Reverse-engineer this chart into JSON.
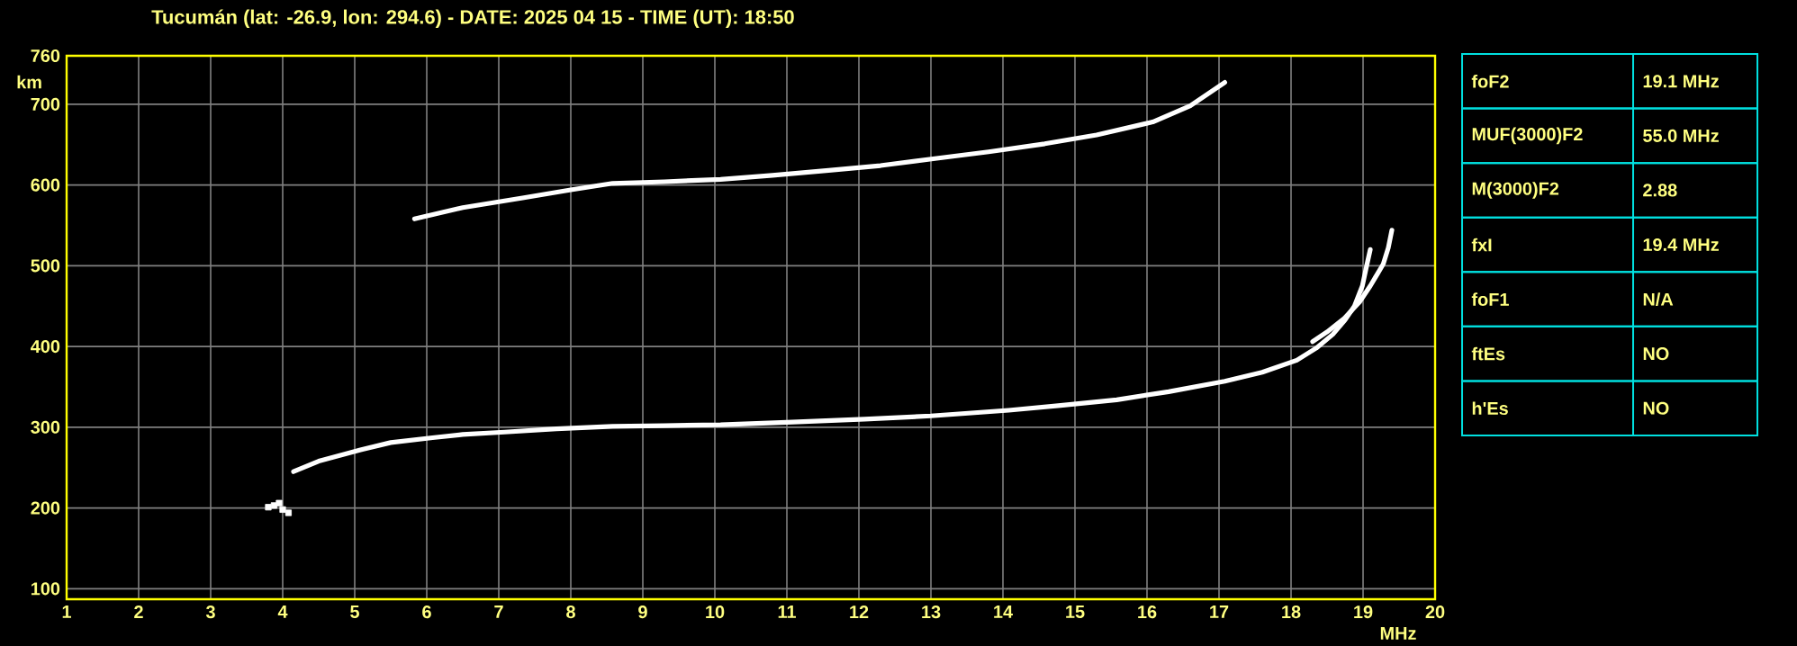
{
  "chart_data": [
    {
      "type": "line",
      "title": "Tucumán (lat: -26.9, lon: 294.6) - DATE: 2025 04 15 - TIME (UT): 18:50",
      "xlabel": "MHz",
      "ylabel": "km",
      "xlim": [
        1,
        20
      ],
      "ylim": [
        87,
        760
      ],
      "xticks": [
        1,
        2,
        3,
        4,
        5,
        6,
        7,
        8,
        9,
        10,
        11,
        12,
        13,
        14,
        15,
        16,
        17,
        18,
        19,
        20
      ],
      "yticks": [
        100,
        200,
        300,
        400,
        500,
        600,
        700,
        760
      ],
      "grid": true,
      "series": [
        {
          "color": "#ffffff",
          "x": [
            4.15,
            4.5,
            5.08,
            5.5,
            6.08,
            6.5,
            7.08,
            7.8,
            8.58,
            9.3,
            10.08,
            11.0,
            12.08,
            13.0,
            14.08,
            14.8,
            15.58,
            16.3,
            17.08,
            17.6,
            18.08,
            18.35,
            18.58,
            18.75,
            18.88,
            18.99,
            19.05,
            19.1
          ],
          "values": [
            245,
            258,
            272,
            281,
            287,
            291,
            294,
            298,
            301,
            302,
            303,
            306,
            310,
            314,
            321,
            327,
            334,
            344,
            357,
            368,
            383,
            398,
            415,
            433,
            450,
            475,
            500,
            520
          ]
        },
        {
          "color": "#ffffff",
          "x": [
            18.3,
            18.5,
            18.74,
            18.95,
            19.1,
            19.2,
            19.28,
            19.35,
            19.4
          ],
          "values": [
            406,
            418,
            435,
            455,
            475,
            490,
            502,
            522,
            544
          ]
        },
        {
          "color": "#ffffff",
          "x": [
            5.83,
            6.5,
            7.33,
            8.0,
            8.58,
            9.3,
            10.08,
            10.8,
            11.58,
            12.3,
            13.08,
            13.8,
            14.58,
            15.3,
            16.08,
            16.6,
            17.08
          ],
          "values": [
            558,
            572,
            584,
            594,
            602,
            604,
            607,
            612,
            618,
            624,
            633,
            641,
            651,
            662,
            678,
            698,
            727
          ]
        },
        {
          "type": "scatter",
          "marker": "square",
          "color": "#ffffff",
          "x": [
            3.8,
            3.88,
            3.95,
            4.0,
            4.08
          ],
          "values": [
            201,
            203,
            206,
            198,
            194
          ]
        }
      ]
    },
    {
      "type": "other",
      "categories": [
        "foF2",
        "MUF(3000)F2",
        "M(3000)F2",
        "fxI",
        "foF1",
        "ftEs",
        "h'Es"
      ],
      "value_labels": [
        "19.1 MHz",
        "55.0 MHz",
        "2.88",
        "19.4 MHz",
        "N/A",
        "NO",
        "NO"
      ]
    }
  ]
}
